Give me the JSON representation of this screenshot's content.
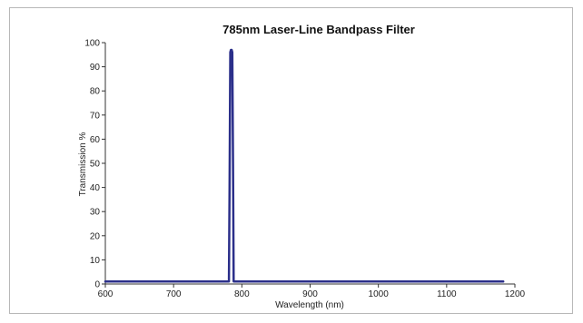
{
  "chart_data": {
    "type": "line",
    "title": "785nm Laser-Line Bandpass Filter",
    "xlabel": "Wavelength (nm)",
    "ylabel": "Transmission %",
    "xlim": [
      600,
      1200
    ],
    "ylim": [
      0,
      100
    ],
    "x_ticks": [
      600,
      700,
      800,
      900,
      1000,
      1100,
      1200
    ],
    "y_ticks": [
      0,
      10,
      20,
      30,
      40,
      50,
      60,
      70,
      80,
      90,
      100
    ],
    "grid": false,
    "legend": "none",
    "series": [
      {
        "color": "#2b2f8a",
        "x": [
          600,
          779,
          781,
          782,
          783,
          784,
          785,
          786,
          787,
          788,
          790,
          1183
        ],
        "y": [
          1,
          1,
          1,
          40,
          96,
          97,
          97,
          96,
          50,
          1,
          1,
          1
        ]
      }
    ]
  }
}
